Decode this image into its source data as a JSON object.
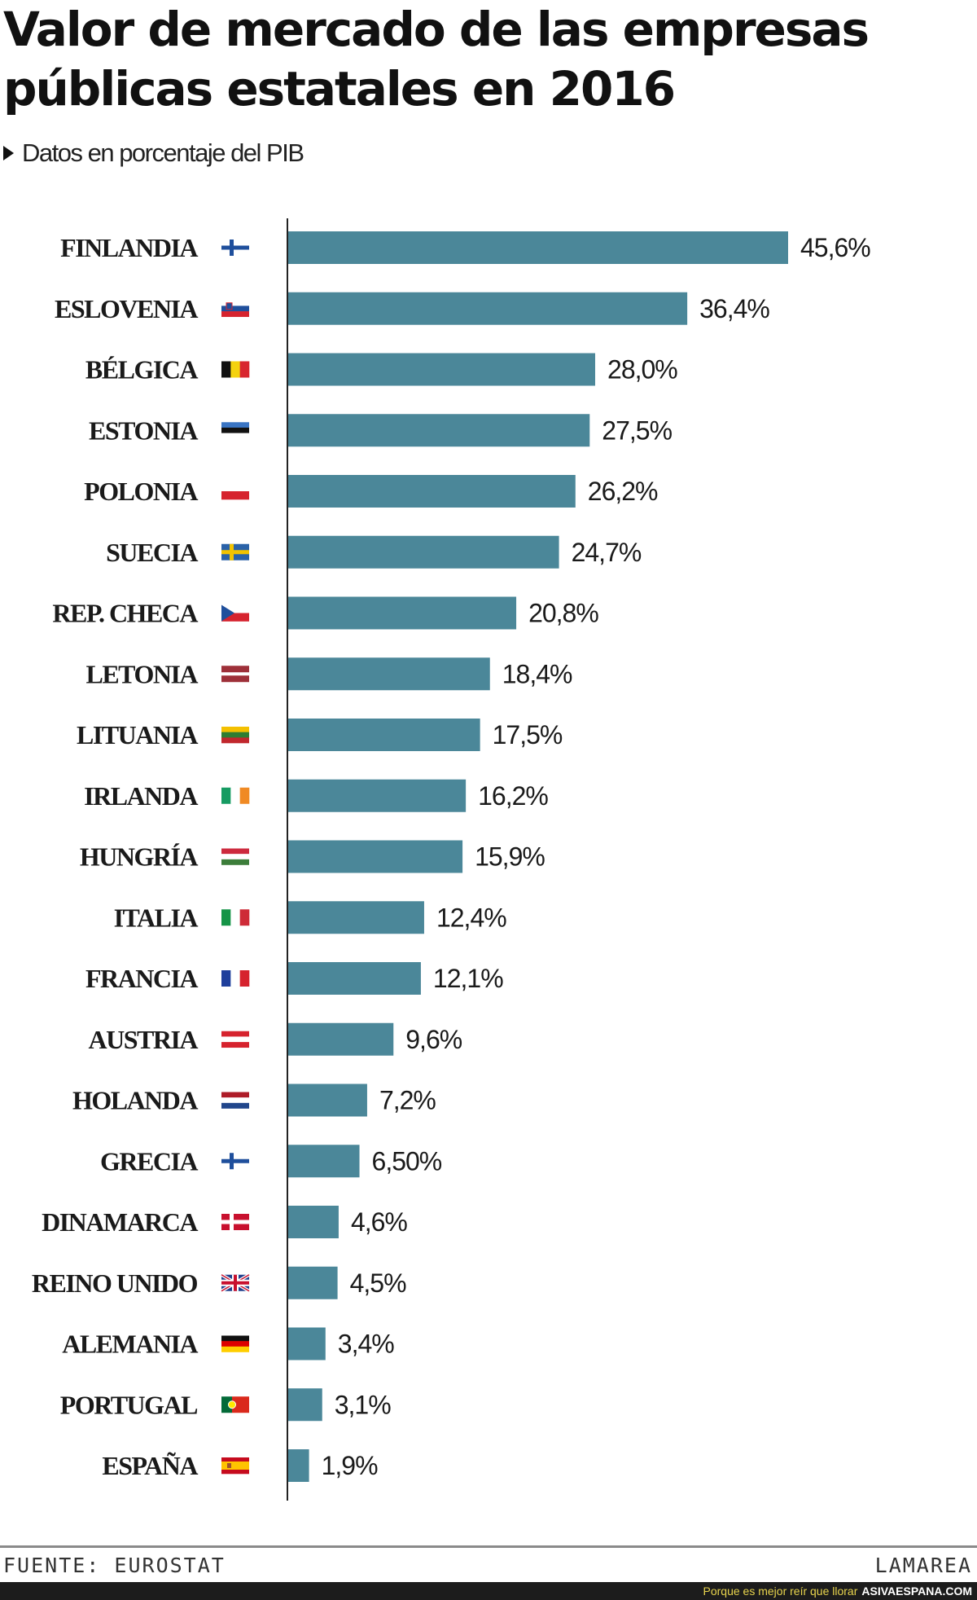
{
  "page": {
    "title": "Valor de mercado de las empresas públicas estatales en 2016",
    "subtitle": "Datos en porcentaje del PIB",
    "source": "FUENTE: EUROSTAT",
    "brand": "LAMAREA",
    "footer_tagline": "Porque es mejor reír que llorar",
    "footer_site": "ASIVAESPANA.COM"
  },
  "chart_data": {
    "type": "bar",
    "orientation": "horizontal",
    "title": "Valor de mercado de las empresas públicas estatales en 2016",
    "subtitle": "Datos en porcentaje del PIB",
    "categories": [
      "FINLANDIA",
      "ESLOVENIA",
      "BÉLGICA",
      "ESTONIA",
      "POLONIA",
      "SUECIA",
      "REP. CHECA",
      "LETONIA",
      "LITUANIA",
      "IRLANDA",
      "HUNGRÍA",
      "ITALIA",
      "FRANCIA",
      "AUSTRIA",
      "HOLANDA",
      "GRECIA",
      "DINAMARCA",
      "REINO UNIDO",
      "ALEMANIA",
      "PORTUGAL",
      "ESPAÑA"
    ],
    "values": [
      45.6,
      36.4,
      28.0,
      27.5,
      26.2,
      24.7,
      20.8,
      18.4,
      17.5,
      16.2,
      15.9,
      12.4,
      12.1,
      9.6,
      7.2,
      6.5,
      4.6,
      4.5,
      3.4,
      3.1,
      1.9
    ],
    "value_labels": [
      "45,6%",
      "36,4%",
      "28,0%",
      "27,5%",
      "26,2%",
      "24,7%",
      "20,8%",
      "18,4%",
      "17,5%",
      "16,2%",
      "15,9%",
      "12,4%",
      "12,1%",
      "9,6%",
      "7,2%",
      "6,50%",
      "4,6%",
      "4,5%",
      "3,4%",
      "3,1%",
      "1,9%"
    ],
    "flags": [
      "finland",
      "slovenia",
      "belgium",
      "estonia",
      "poland",
      "sweden",
      "czech",
      "latvia",
      "lithuania",
      "ireland",
      "hungary",
      "italy",
      "france",
      "austria",
      "netherlands",
      "greece",
      "denmark",
      "uk",
      "germany",
      "portugal",
      "spain"
    ],
    "xlim": [
      0,
      45.6
    ],
    "bar_color": "#4b8799",
    "grid": false,
    "legend": "none"
  }
}
